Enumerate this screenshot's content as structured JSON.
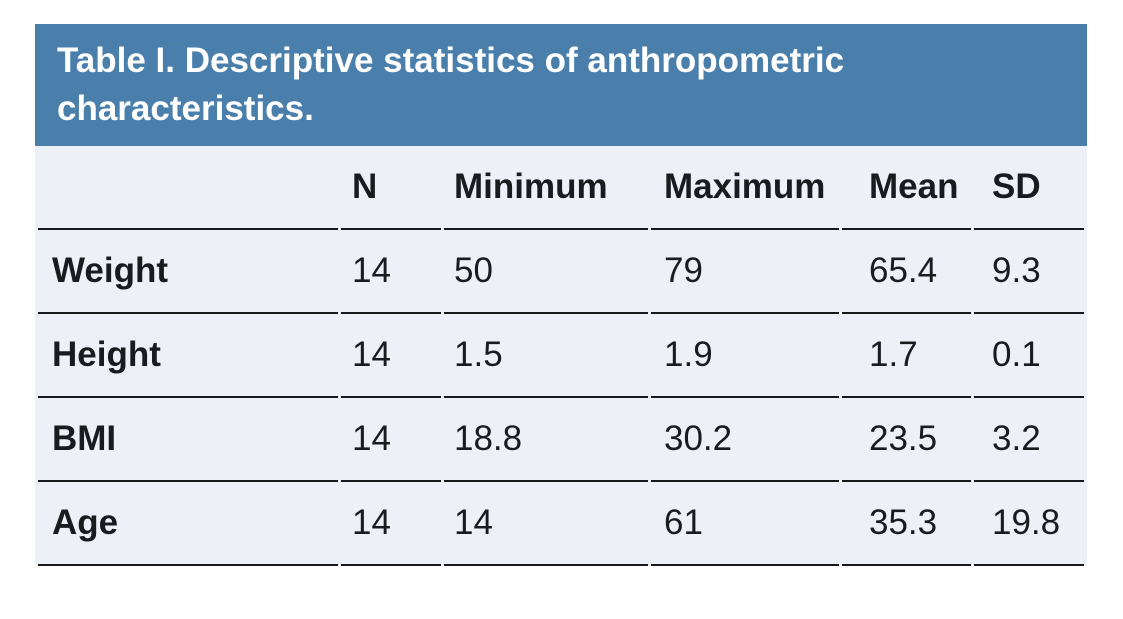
{
  "style": {
    "accent": "#4a7fac",
    "body_bg": "#edf0f6",
    "rule": "#17181c",
    "text": "#1a1b1f",
    "title_text": "#ffffff",
    "page_bg": "#ffffff"
  },
  "chart_data": {
    "type": "table",
    "title": "Table I. Descriptive statistics of anthropometric characteristics.",
    "columns": [
      "N",
      "Minimum",
      "Maximum",
      "Mean",
      "SD"
    ],
    "row_labels": [
      "Weight",
      "Height",
      "BMI",
      "Age"
    ],
    "rows": [
      [
        14,
        50,
        79,
        65.4,
        9.3
      ],
      [
        14,
        1.5,
        1.9,
        1.7,
        0.1
      ],
      [
        14,
        18.8,
        30.2,
        23.5,
        3.2
      ],
      [
        14,
        14,
        61,
        35.3,
        19.8
      ]
    ],
    "layout": {
      "title_position": "top-banner",
      "grid": "horizontal-rules-only",
      "first_column": "row labels"
    }
  }
}
